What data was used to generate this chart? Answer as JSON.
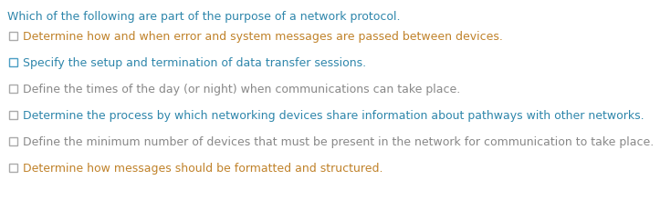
{
  "question": "Which of the following are part of the purpose of a network protocol.",
  "question_color": "#2e86ab",
  "items": [
    {
      "text": "Determine how and when error and system messages are passed between devices.",
      "text_color": "#c0822a",
      "checkbox_edge_color": "#aaaaaa",
      "checkbox_fill": "#ffffff"
    },
    {
      "text": "Specify the setup and termination of data transfer sessions.",
      "text_color": "#2e86ab",
      "checkbox_edge_color": "#4a9ec4",
      "checkbox_fill": "#ffffff"
    },
    {
      "text": "Define the times of the day (or night) when communications can take place.",
      "text_color": "#888888",
      "checkbox_edge_color": "#aaaaaa",
      "checkbox_fill": "#ffffff"
    },
    {
      "text": "Determine the process by which networking devices share information about pathways with other networks.",
      "text_color": "#2e86ab",
      "checkbox_edge_color": "#aaaaaa",
      "checkbox_fill": "#ffffff"
    },
    {
      "text": "Define the minimum number of devices that must be present in the network for communication to take place.",
      "text_color": "#888888",
      "checkbox_edge_color": "#aaaaaa",
      "checkbox_fill": "#ffffff"
    },
    {
      "text": "Determine how messages should be formatted and structured.",
      "text_color": "#c0822a",
      "checkbox_edge_color": "#aaaaaa",
      "checkbox_fill": "#ffffff"
    }
  ],
  "background_color": "#ffffff",
  "font_size": 9.0,
  "question_font_size": 9.0
}
